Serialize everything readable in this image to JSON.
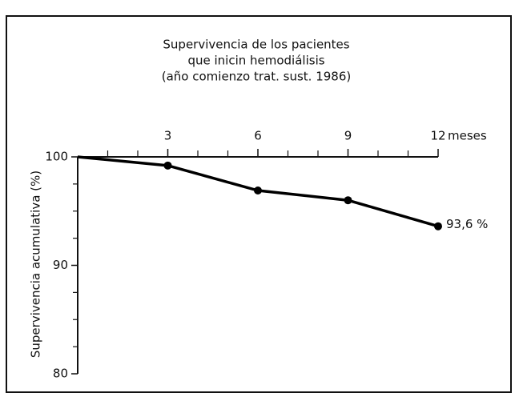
{
  "chart_data": {
    "type": "line",
    "title_lines": [
      "Supervivencia de los pacientes",
      "que inicin hemodiálisis",
      "(año comienzo trat. sust. 1986)"
    ],
    "ylabel": "Supervivencia acumulativa (%)",
    "xlabel": "meses",
    "x": [
      0,
      3,
      6,
      9,
      12
    ],
    "series": [
      {
        "color": "#000000",
        "values": [
          100,
          99.2,
          96.9,
          96.0,
          93.6
        ],
        "value_labels": [
          null,
          null,
          null,
          null,
          "93,6 %"
        ]
      }
    ],
    "xlim": [
      0,
      12
    ],
    "xticks": [
      3,
      6,
      9,
      12
    ],
    "xticks_minor": [
      1,
      2,
      4,
      5,
      7,
      8,
      10,
      11
    ],
    "ylim": [
      80,
      100
    ],
    "yticks": [
      80,
      90,
      100
    ],
    "yticks_minor": [
      82.5,
      85,
      87.5,
      92.5,
      95,
      97.5
    ]
  }
}
